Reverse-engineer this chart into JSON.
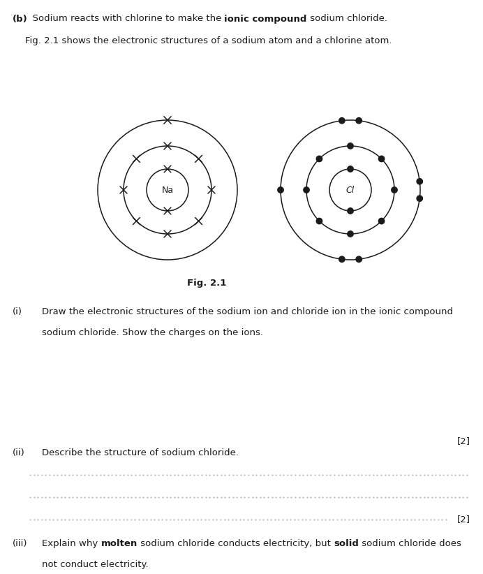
{
  "bg_color": "#ffffff",
  "text_color": "#1a1a1a",
  "line_color": "#1a1a1a",
  "fig_width": 6.92,
  "fig_height": 8.22,
  "na_label": "Na",
  "cl_label": "Cl",
  "fig_label": "Fig. 2.1",
  "marks_i": "[2]",
  "marks_ii": "[2]",
  "header_normal1": "(b)  Sodium reacts with chlorine to make the ",
  "header_bold": "ionic compound",
  "header_normal2": " sodium chloride.",
  "fig_desc": "Fig. 2.1 shows the electronic structures of a sodium atom and a chlorine atom.",
  "qi_label": "(i)",
  "qi_line1": "Draw the electronic structures of the sodium ion and chloride ion in the ionic compound",
  "qi_line2": "sodium chloride. Show the charges on the ions.",
  "qii_label": "(ii)",
  "qii_text": "Describe the structure of sodium chloride.",
  "qiii_label": "(iii)",
  "qiii_normal1": "Explain why ",
  "qiii_bold1": "molten",
  "qiii_normal2": " sodium chloride conducts electricity, but ",
  "qiii_bold2": "solid",
  "qiii_normal3": " sodium chloride does",
  "qiii_line2": "not conduct electricity."
}
